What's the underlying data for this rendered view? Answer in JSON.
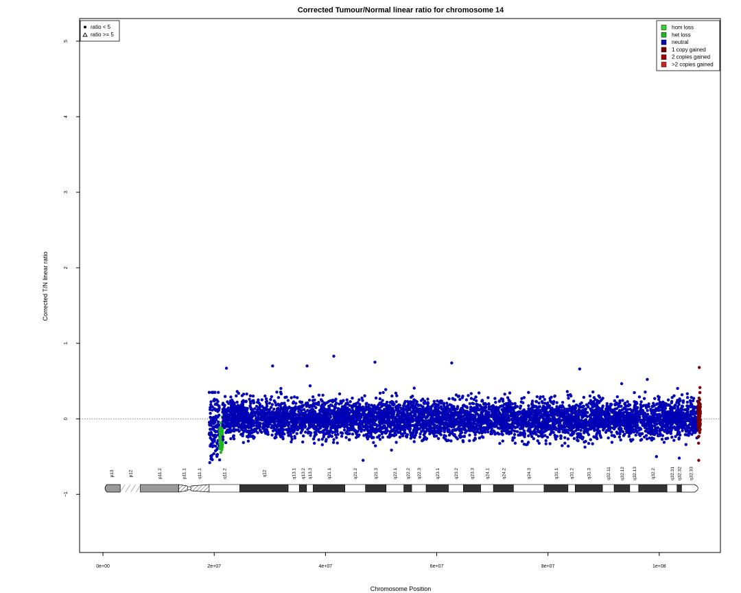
{
  "chart_data": {
    "type": "scatter",
    "title": "Corrected Tumour/Normal linear ratio for chromosome  14",
    "xlabel": "Chromosome Position",
    "ylabel": "Corrected T/N linear ratio",
    "xlim": [
      -4200000,
      111000000
    ],
    "ylim": [
      -1.77,
      5.3
    ],
    "x_ticks": [
      0,
      20000000,
      40000000,
      60000000,
      80000000,
      100000000
    ],
    "x_tick_labels": [
      "0e+00",
      "2e+07",
      "4e+07",
      "6e+07",
      "8e+07",
      "1e+08"
    ],
    "y_ticks": [
      -1,
      0,
      1,
      2,
      3,
      4,
      5
    ],
    "y_tick_labels": [
      "−1",
      "0",
      "1",
      "2",
      "3",
      "4",
      "5"
    ],
    "reference_line": {
      "y": 0,
      "style": "dotted"
    },
    "shape_legend": {
      "position": "top-left",
      "entries": [
        {
          "symbol": "filled-circle",
          "label": "ratio < 5"
        },
        {
          "symbol": "open-triangle",
          "label": "ratio >= 5"
        }
      ]
    },
    "color_legend": {
      "position": "top-right",
      "entries": [
        {
          "label": "hom loss",
          "color": "#2ed82e"
        },
        {
          "label": "het loss",
          "color": "#22b522"
        },
        {
          "label": "neutral",
          "color": "#0000b4"
        },
        {
          "label": "1 copy gained",
          "color": "#7a0000"
        },
        {
          "label": "2 copies gained",
          "color": "#a50000"
        },
        {
          "label": ">2 copies gained",
          "color": "#d21e1e"
        }
      ]
    },
    "segments": [
      {
        "state": "neutral",
        "color": "#0000b4",
        "x_start": 19100000,
        "x_end": 21000000,
        "median": -0.1,
        "spread": 0.55,
        "min": -0.6,
        "max": 0.5
      },
      {
        "state": "het loss",
        "color": "#22b522",
        "x_start": 21000000,
        "x_end": 21500000,
        "median": -0.25,
        "spread": 0.25,
        "min": -0.6,
        "max": 0.12
      },
      {
        "state": "neutral",
        "color": "#0000b4",
        "x_start": 21500000,
        "x_end": 107000000,
        "median": 0.0,
        "spread": 0.28,
        "min": -0.55,
        "max": 0.85
      },
      {
        "state": "1 copy gained",
        "color": "#7a0000",
        "x_start": 107000000,
        "x_end": 107400000,
        "median": 0.05,
        "spread": 0.3,
        "min": -0.55,
        "max": 0.68
      }
    ],
    "outliers": [
      {
        "x": 41500000,
        "y": 0.83
      },
      {
        "x": 30500000,
        "y": 0.7
      },
      {
        "x": 36700000,
        "y": 0.7
      },
      {
        "x": 48900000,
        "y": 0.75
      },
      {
        "x": 62700000,
        "y": 0.74
      },
      {
        "x": 22200000,
        "y": 0.67
      },
      {
        "x": 85700000,
        "y": 0.66
      },
      {
        "x": 107200000,
        "y": 0.68
      },
      {
        "x": 107100000,
        "y": -0.55
      },
      {
        "x": 99500000,
        "y": -0.5
      },
      {
        "x": 103600000,
        "y": -0.52
      }
    ],
    "ideogram": {
      "y": -0.92,
      "centromere_x": 15500000,
      "bands": [
        {
          "name": "p13",
          "start": 0,
          "end": 3100000,
          "stain": "gvar"
        },
        {
          "name": "p12",
          "start": 3100000,
          "end": 6700000,
          "stain": "stalk"
        },
        {
          "name": "p11.2",
          "start": 6700000,
          "end": 13600000,
          "stain": "gvar"
        },
        {
          "name": "p11.1",
          "start": 13600000,
          "end": 15500000,
          "stain": "acen"
        },
        {
          "name": "q11.1",
          "start": 15500000,
          "end": 19100000,
          "stain": "acen"
        },
        {
          "name": "q11.2",
          "start": 19100000,
          "end": 24600000,
          "stain": "gneg"
        },
        {
          "name": "q12",
          "start": 24600000,
          "end": 33300000,
          "stain": "gpos100"
        },
        {
          "name": "q13.1",
          "start": 33300000,
          "end": 35300000,
          "stain": "gneg"
        },
        {
          "name": "q13.2",
          "start": 35300000,
          "end": 36600000,
          "stain": "gpos50"
        },
        {
          "name": "q13.3",
          "start": 36600000,
          "end": 37800000,
          "stain": "gneg"
        },
        {
          "name": "q21.1",
          "start": 37800000,
          "end": 43500000,
          "stain": "gpos100"
        },
        {
          "name": "q21.2",
          "start": 43500000,
          "end": 47200000,
          "stain": "gneg"
        },
        {
          "name": "q21.3",
          "start": 47200000,
          "end": 50900000,
          "stain": "gpos100"
        },
        {
          "name": "q22.1",
          "start": 50900000,
          "end": 54100000,
          "stain": "gneg"
        },
        {
          "name": "q22.2",
          "start": 54100000,
          "end": 55500000,
          "stain": "gpos25"
        },
        {
          "name": "q22.3",
          "start": 55500000,
          "end": 58100000,
          "stain": "gneg"
        },
        {
          "name": "q23.1",
          "start": 58100000,
          "end": 62100000,
          "stain": "gpos75"
        },
        {
          "name": "q23.2",
          "start": 62100000,
          "end": 64800000,
          "stain": "gneg"
        },
        {
          "name": "q23.3",
          "start": 64800000,
          "end": 67900000,
          "stain": "gpos50"
        },
        {
          "name": "q24.1",
          "start": 67900000,
          "end": 70200000,
          "stain": "gneg"
        },
        {
          "name": "q24.2",
          "start": 70200000,
          "end": 73800000,
          "stain": "gpos50"
        },
        {
          "name": "q24.3",
          "start": 73800000,
          "end": 79300000,
          "stain": "gneg"
        },
        {
          "name": "q31.1",
          "start": 79300000,
          "end": 83600000,
          "stain": "gpos100"
        },
        {
          "name": "q31.2",
          "start": 83600000,
          "end": 84900000,
          "stain": "gneg"
        },
        {
          "name": "q31.3",
          "start": 84900000,
          "end": 89800000,
          "stain": "gpos100"
        },
        {
          "name": "q32.11",
          "start": 89800000,
          "end": 91900000,
          "stain": "gneg"
        },
        {
          "name": "q32.12",
          "start": 91900000,
          "end": 94700000,
          "stain": "gpos25"
        },
        {
          "name": "q32.13",
          "start": 94700000,
          "end": 96300000,
          "stain": "gneg"
        },
        {
          "name": "q32.2",
          "start": 96300000,
          "end": 101400000,
          "stain": "gpos50"
        },
        {
          "name": "q32.31",
          "start": 101400000,
          "end": 103200000,
          "stain": "gneg"
        },
        {
          "name": "q32.32",
          "start": 103200000,
          "end": 104000000,
          "stain": "gpos50"
        },
        {
          "name": "q32.33",
          "start": 104000000,
          "end": 107349540,
          "stain": "gneg"
        }
      ]
    }
  }
}
